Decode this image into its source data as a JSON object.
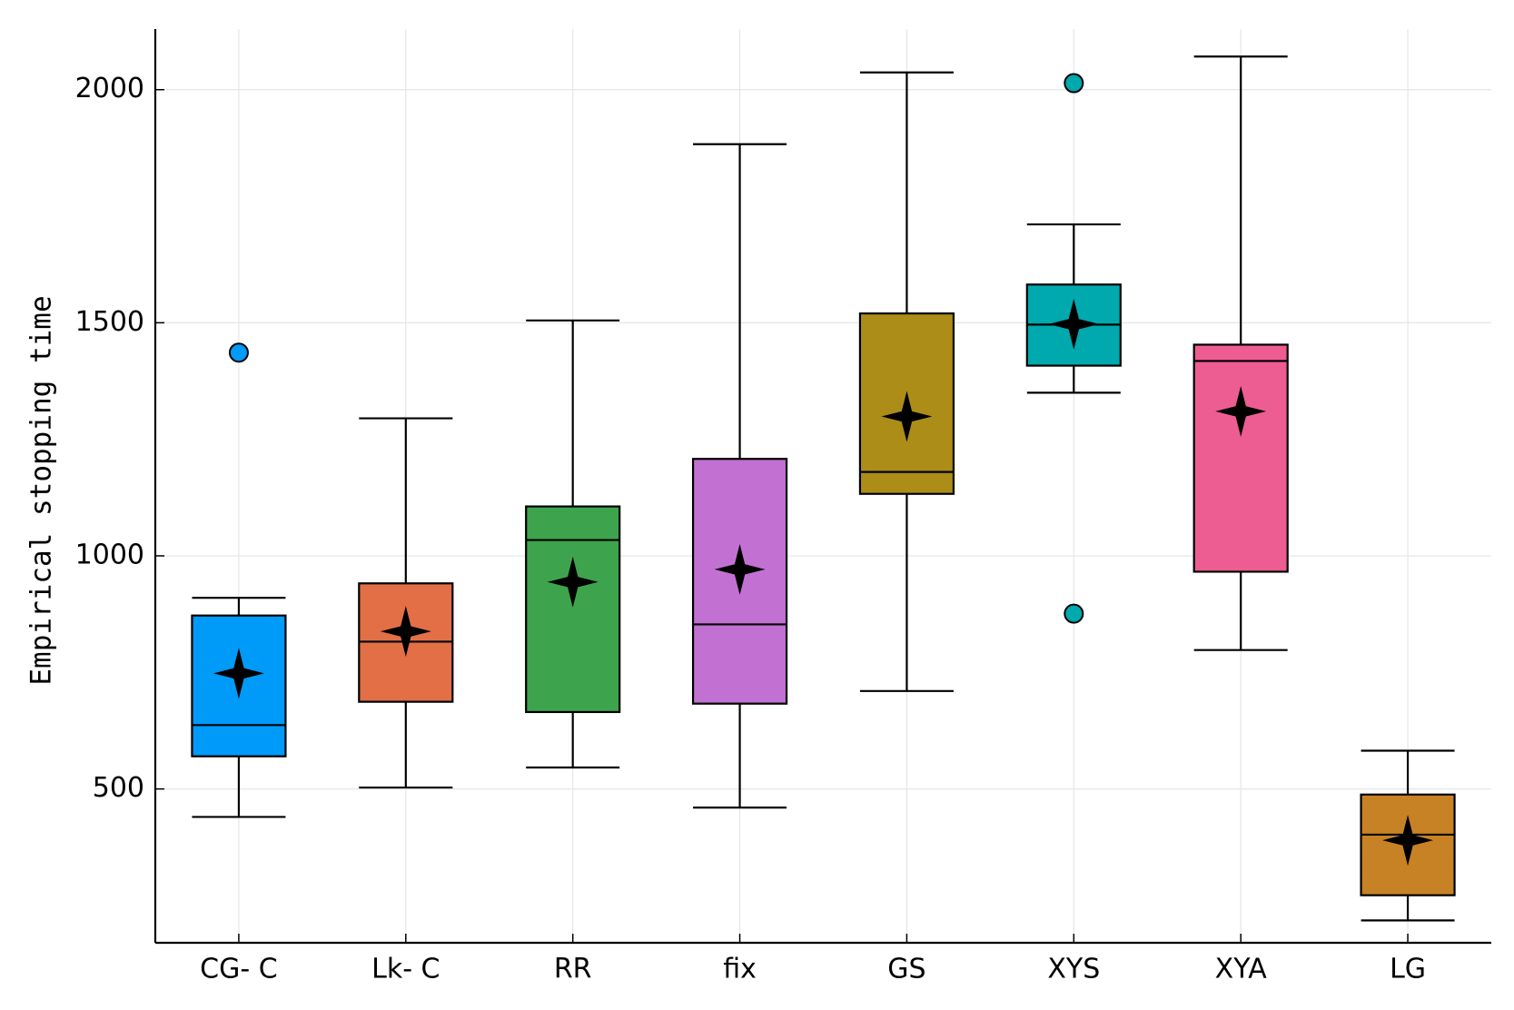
{
  "chart_data": {
    "type": "box",
    "title": "",
    "xlabel": "",
    "ylabel": "Empirical stopping time",
    "ylim": [
      170,
      2130
    ],
    "yticks": [
      500,
      1000,
      1500,
      2000
    ],
    "ytick_labels": [
      "500",
      "1000",
      "1500",
      "2000"
    ],
    "grid": true,
    "legend": "none",
    "categories": [
      "CG- C",
      "Lk- C",
      "RR",
      "fix",
      "GS",
      "XYS",
      "XYA",
      "LG"
    ],
    "boxes": [
      {
        "name": "CG- C",
        "color": "#009AF9",
        "whisker_low": 440,
        "q1": 570,
        "median": 637,
        "q3": 872,
        "whisker_high": 910,
        "mean": 748,
        "outliers": [
          1436
        ]
      },
      {
        "name": "Lk- C",
        "color": "#E26F46",
        "whisker_low": 503,
        "q1": 687,
        "median": 816,
        "q3": 941,
        "whisker_high": 1295,
        "mean": 838,
        "outliers": []
      },
      {
        "name": "RR",
        "color": "#3DA44D",
        "whisker_low": 546,
        "q1": 665,
        "median": 1034,
        "q3": 1106,
        "whisker_high": 1505,
        "mean": 944,
        "outliers": []
      },
      {
        "name": "fix",
        "color": "#C271D2",
        "whisker_low": 460,
        "q1": 683,
        "median": 853,
        "q3": 1208,
        "whisker_high": 1883,
        "mean": 971,
        "outliers": []
      },
      {
        "name": "GS",
        "color": "#AC8D18",
        "whisker_low": 710,
        "q1": 1133,
        "median": 1180,
        "q3": 1520,
        "whisker_high": 2037,
        "mean": 1299,
        "outliers": []
      },
      {
        "name": "XYS",
        "color": "#00A9AD",
        "whisker_low": 1350,
        "q1": 1408,
        "median": 1496,
        "q3": 1582,
        "whisker_high": 1711,
        "mean": 1497,
        "outliers": [
          2014,
          876
        ]
      },
      {
        "name": "XYA",
        "color": "#ED5D92",
        "whisker_low": 798,
        "q1": 966,
        "median": 1418,
        "q3": 1453,
        "whisker_high": 2071,
        "mean": 1310,
        "outliers": []
      },
      {
        "name": "LG",
        "color": "#C68225",
        "whisker_low": 218,
        "q1": 272,
        "median": 402,
        "q3": 488,
        "whisker_high": 582,
        "mean": 390,
        "outliers": []
      }
    ]
  }
}
